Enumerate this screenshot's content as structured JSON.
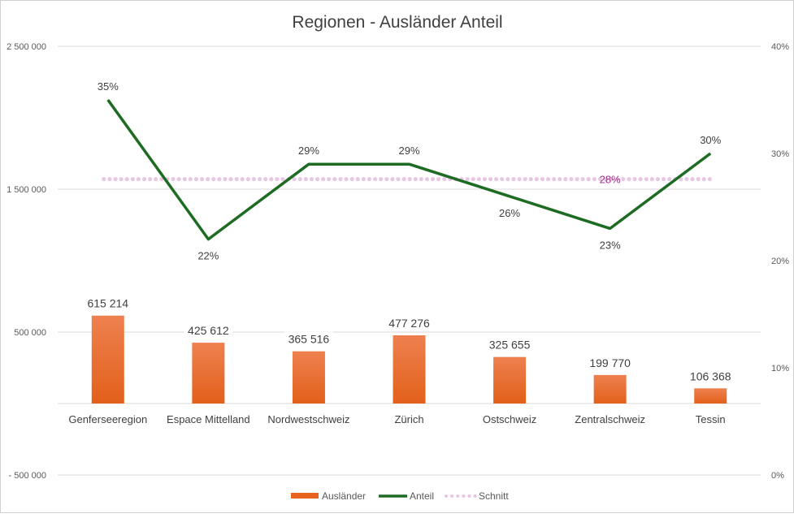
{
  "chart_data": {
    "type": "bar+line",
    "title": "Regionen - Ausländer Anteil",
    "categories": [
      "Genferseeregion",
      "Espace Mittelland",
      "Nordwestschweiz",
      "Zürich",
      "Ostschweiz",
      "Zentralschweiz",
      "Tessin"
    ],
    "series": [
      {
        "name": "Ausländer",
        "type": "bar",
        "axis": "left",
        "color": "#E8641E",
        "values": [
          615214,
          425612,
          365516,
          477276,
          325655,
          199770,
          106368
        ],
        "labels": [
          "615 214",
          "425 612",
          "365 516",
          "477 276",
          "325 655",
          "199 770",
          "106 368"
        ]
      },
      {
        "name": "Anteil",
        "type": "line",
        "axis": "right",
        "color": "#1E6B23",
        "values": [
          0.35,
          0.22,
          0.29,
          0.29,
          0.26,
          0.23,
          0.3
        ],
        "labels": [
          "35%",
          "22%",
          "29%",
          "29%",
          "26%",
          "23%",
          "30%"
        ]
      },
      {
        "name": "Schnitt",
        "type": "line",
        "axis": "right",
        "color": "#E8C6E4",
        "dotted": true,
        "value": 0.276,
        "label": "28%",
        "label_color": "#A0308C"
      }
    ],
    "left_axis": {
      "ylim": [
        -500000,
        2500000
      ],
      "ticks": [
        -500000,
        500000,
        1500000,
        2500000
      ],
      "tick_labels": [
        "- 500 000",
        "500 000",
        "1 500 000",
        "2 500 000"
      ]
    },
    "right_axis": {
      "ylim": [
        0,
        0.4
      ],
      "ticks": [
        0,
        0.1,
        0.2,
        0.3,
        0.4
      ],
      "tick_labels": [
        "0%",
        "10%",
        "20%",
        "30%",
        "40%"
      ]
    },
    "grid": true,
    "legend": {
      "position": "bottom",
      "entries": [
        "Ausländer",
        "Anteil",
        "Schnitt"
      ]
    }
  }
}
